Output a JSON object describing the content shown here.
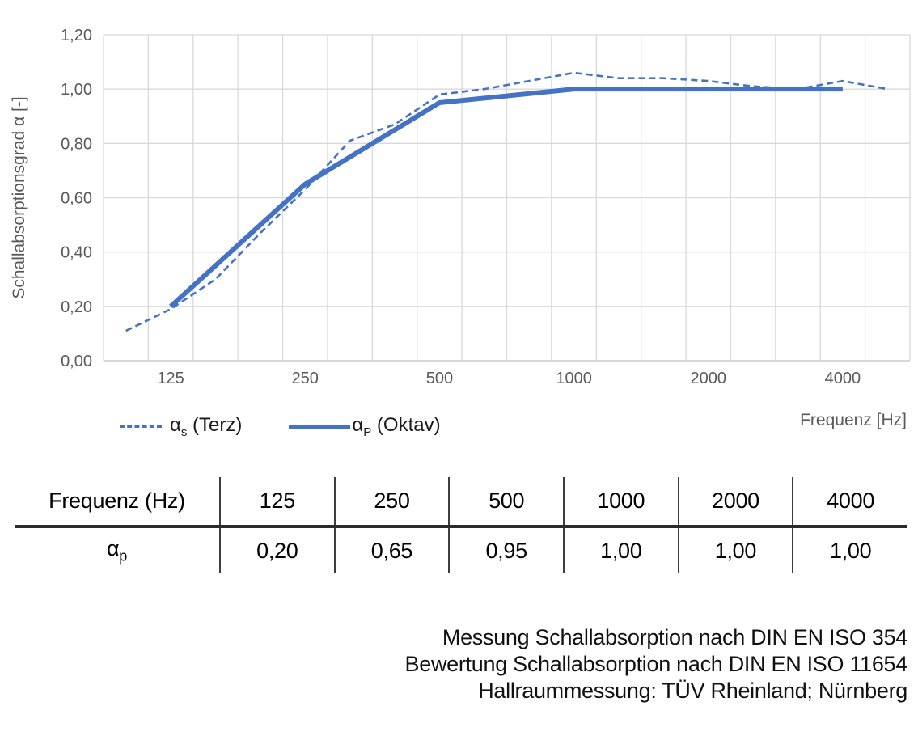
{
  "colors": {
    "series_blue": "#4472C4",
    "grid": "#D9D9D9",
    "axis_line": "#BFBFBF",
    "axis_text": "#595959",
    "text": "#111111"
  },
  "chart_data": {
    "type": "line",
    "ylabel": "Schallabsorptionsgrad α [-]",
    "xlabel": "Frequenz [Hz]",
    "ylim": [
      0,
      1.2
    ],
    "ytick_values": [
      0,
      0.2,
      0.4,
      0.6,
      0.8,
      1.0,
      1.2
    ],
    "ytick_labels": [
      "0,00",
      "0,20",
      "0,40",
      "0,60",
      "0,80",
      "1,00",
      "1,20"
    ],
    "terz_frequencies": [
      100,
      125,
      160,
      200,
      250,
      315,
      400,
      500,
      630,
      800,
      1000,
      1250,
      1600,
      2000,
      2500,
      3150,
      4000,
      5000
    ],
    "x_axis_labels": [
      "125",
      "250",
      "500",
      "1000",
      "2000",
      "4000"
    ],
    "grid": "on",
    "legend_position": "bottom-left",
    "series": [
      {
        "name": "αs (Terz)",
        "style": "dashed",
        "x": [
          100,
          125,
          160,
          200,
          250,
          315,
          400,
          500,
          630,
          800,
          1000,
          1250,
          1600,
          2000,
          2500,
          3150,
          4000,
          5000
        ],
        "values": [
          0.11,
          0.19,
          0.3,
          0.47,
          0.63,
          0.81,
          0.87,
          0.98,
          1.0,
          1.03,
          1.06,
          1.04,
          1.04,
          1.03,
          1.01,
          1.0,
          1.03,
          1.0
        ]
      },
      {
        "name": "αP (Oktav)",
        "style": "solid",
        "x": [
          125,
          250,
          500,
          1000,
          2000,
          4000
        ],
        "values": [
          0.2,
          0.65,
          0.95,
          1.0,
          1.0,
          1.0
        ]
      }
    ]
  },
  "legend": {
    "items": [
      {
        "symbol": "α",
        "subscript": "s",
        "suffix": " (Terz)"
      },
      {
        "symbol": "α",
        "subscript": "P",
        "suffix": " (Oktav)"
      }
    ]
  },
  "table": {
    "header": [
      "Frequenz (Hz)",
      "125",
      "250",
      "500",
      "1000",
      "2000",
      "4000"
    ],
    "row_label": {
      "symbol": "α",
      "subscript": "p"
    },
    "values": [
      "0,20",
      "0,65",
      "0,95",
      "1,00",
      "1,00",
      "1,00"
    ]
  },
  "footer": {
    "lines": [
      "Messung Schallabsorption nach DIN EN ISO 354",
      "Bewertung Schallabsorption nach DIN EN ISO 11654",
      "Hallraummessung: TÜV Rheinland; Nürnberg"
    ]
  }
}
